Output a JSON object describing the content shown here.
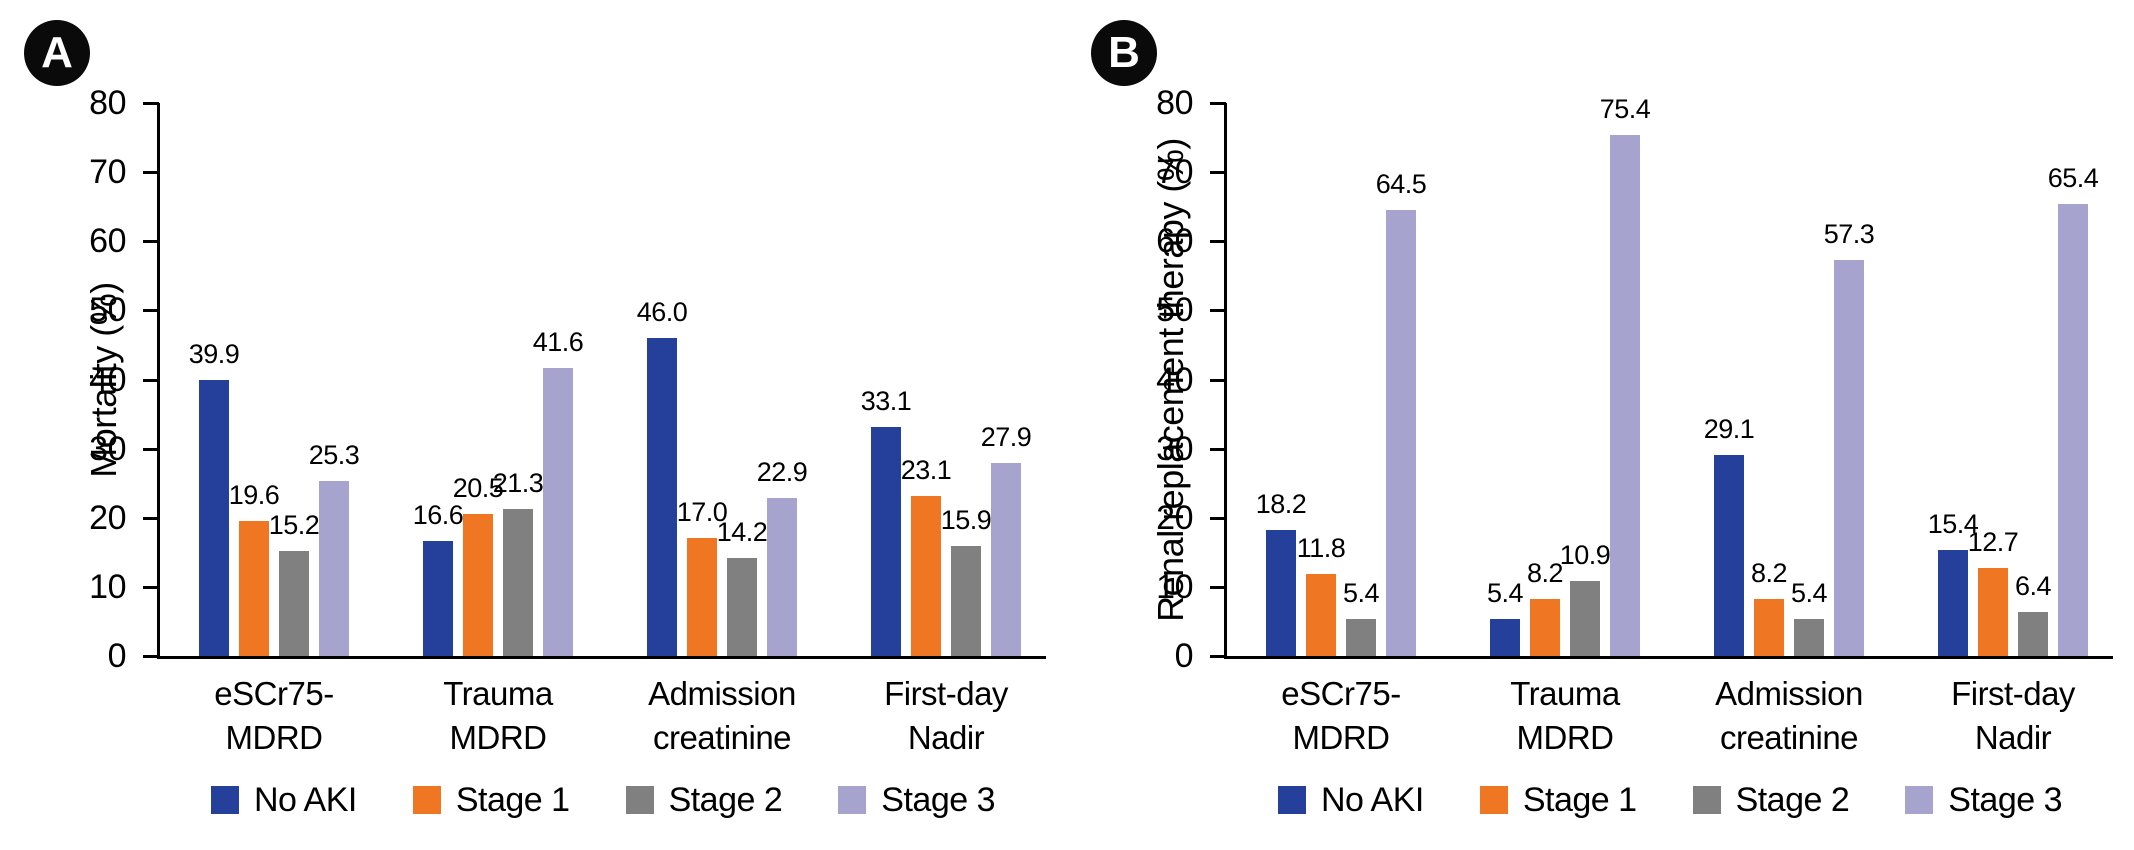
{
  "figure": {
    "background": "#ffffff",
    "text_color": "#000000",
    "badge_background": "#0a0a0a"
  },
  "chart_data": [
    {
      "panel_label": "A",
      "type": "bar",
      "title": "",
      "xlabel": "",
      "ylabel": "Mortality (%)",
      "ylim": [
        0,
        80
      ],
      "yticks": [
        0,
        10,
        20,
        30,
        40,
        50,
        60,
        70,
        80
      ],
      "grid": false,
      "legend_position": "bottom",
      "categories": [
        "eSCr75-\nMDRD",
        "Trauma\nMDRD",
        "Admission\ncreatinine",
        "First-day\nNadir"
      ],
      "series": [
        {
          "name": "No AKI",
          "color": "#24409a",
          "values": [
            39.9,
            16.6,
            46.0,
            33.1
          ]
        },
        {
          "name": "Stage 1",
          "color": "#ef7622",
          "values": [
            19.6,
            20.5,
            17.0,
            23.1
          ]
        },
        {
          "name": "Stage 2",
          "color": "#808080",
          "values": [
            15.2,
            21.3,
            14.2,
            15.9
          ]
        },
        {
          "name": "Stage 3",
          "color": "#a6a3ce",
          "values": [
            25.3,
            41.6,
            22.9,
            27.9
          ]
        }
      ]
    },
    {
      "panel_label": "B",
      "type": "bar",
      "title": "",
      "xlabel": "",
      "ylabel": "Renal replacement therapy (%)",
      "ylim": [
        0,
        80
      ],
      "yticks": [
        0,
        10,
        20,
        30,
        40,
        50,
        60,
        70,
        80
      ],
      "grid": false,
      "legend_position": "bottom",
      "categories": [
        "eSCr75-\nMDRD",
        "Trauma\nMDRD",
        "Admission\ncreatinine",
        "First-day\nNadir"
      ],
      "series": [
        {
          "name": "No AKI",
          "color": "#24409a",
          "values": [
            18.2,
            5.4,
            29.1,
            15.4
          ]
        },
        {
          "name": "Stage 1",
          "color": "#ef7622",
          "values": [
            11.8,
            8.2,
            8.2,
            12.7
          ]
        },
        {
          "name": "Stage 2",
          "color": "#808080",
          "values": [
            5.4,
            10.9,
            5.4,
            6.4
          ]
        },
        {
          "name": "Stage 3",
          "color": "#a6a3ce",
          "values": [
            64.5,
            75.4,
            57.3,
            65.4
          ]
        }
      ]
    }
  ]
}
